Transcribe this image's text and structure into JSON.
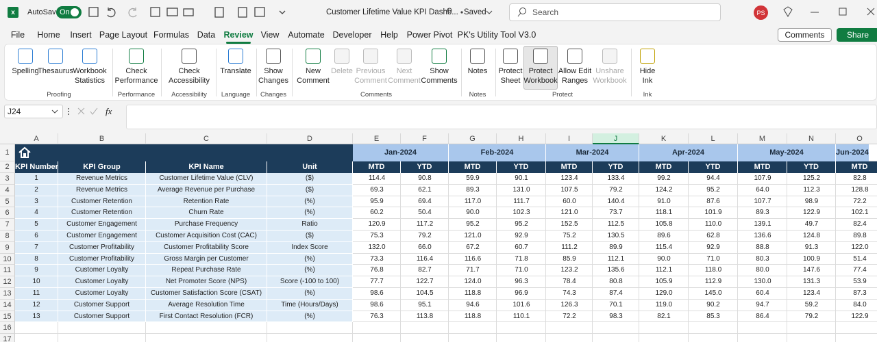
{
  "title_bar": {
    "autosave": "AutoSave",
    "toggle": "On",
    "document_title": "Customer Lifetime Value KPI Dashb...",
    "status": "Saved",
    "search": "Search",
    "avatar": "PS"
  },
  "menu": {
    "tabs": [
      "File",
      "Home",
      "Insert",
      "Page Layout",
      "Formulas",
      "Data",
      "Review",
      "View",
      "Automate",
      "Developer",
      "Help",
      "Power Pivot",
      "PK's Utility Tool V3.0"
    ],
    "comments_button": "Comments",
    "share_button": "Share"
  },
  "ribbon": {
    "groups": [
      {
        "label": "Proofing",
        "buttons": [
          {
            "lines": [
              "Spelling"
            ]
          },
          {
            "lines": [
              "Thesaurus"
            ]
          },
          {
            "lines": [
              "Workbook",
              "Statistics"
            ]
          }
        ]
      },
      {
        "label": "Performance",
        "buttons": [
          {
            "lines": [
              "Check",
              "Performance"
            ]
          }
        ]
      },
      {
        "label": "Accessibility",
        "buttons": [
          {
            "lines": [
              "Check",
              "Accessibility"
            ]
          }
        ]
      },
      {
        "label": "Language",
        "buttons": [
          {
            "lines": [
              "Translate"
            ]
          }
        ]
      },
      {
        "label": "Changes",
        "buttons": [
          {
            "lines": [
              "Show",
              "Changes"
            ]
          }
        ]
      },
      {
        "label": "Comments",
        "buttons": [
          {
            "lines": [
              "New",
              "Comment"
            ]
          },
          {
            "lines": [
              "Delete"
            ],
            "disabled": true
          },
          {
            "lines": [
              "Previous",
              "Comment"
            ],
            "disabled": true
          },
          {
            "lines": [
              "Next",
              "Comment"
            ],
            "disabled": true
          },
          {
            "lines": [
              "Show",
              "Comments"
            ]
          }
        ]
      },
      {
        "label": "Notes",
        "buttons": [
          {
            "lines": [
              "Notes"
            ]
          }
        ]
      },
      {
        "label": "Protect",
        "buttons": [
          {
            "lines": [
              "Protect",
              "Sheet"
            ]
          },
          {
            "lines": [
              "Protect",
              "Workbook"
            ]
          },
          {
            "lines": [
              "Allow Edit",
              "Ranges"
            ]
          },
          {
            "lines": [
              "Unshare",
              "Workbook"
            ],
            "disabled": true
          }
        ]
      },
      {
        "label": "Ink",
        "buttons": [
          {
            "lines": [
              "Hide",
              "Ink"
            ]
          }
        ]
      }
    ]
  },
  "formula_bar": {
    "name_box": "J24",
    "fx": "fx"
  },
  "sheet": {
    "columns": [
      "A",
      "B",
      "C",
      "D",
      "E",
      "F",
      "G",
      "H",
      "I",
      "J",
      "K",
      "L",
      "M",
      "N",
      "O"
    ],
    "row_numbers": [
      "1",
      "2",
      "3",
      "4",
      "5",
      "6",
      "7",
      "8",
      "9",
      "10",
      "11",
      "12",
      "13",
      "14",
      "15",
      "16",
      "17"
    ],
    "months": [
      "Jan-2024",
      "Feb-2024",
      "Mar-2024",
      "Apr-2024",
      "May-2024",
      "Jun-2024"
    ],
    "header": [
      "KPI Number",
      "KPI Group",
      "KPI Name",
      "Unit",
      "MTD",
      "YTD",
      "MTD",
      "YTD",
      "MTD",
      "YTD",
      "MTD",
      "YTD",
      "MTD",
      "YTD",
      "MTD"
    ],
    "rows": [
      [
        "1",
        "Revenue Metrics",
        "Customer Lifetime Value (CLV)",
        "($)",
        "114.4",
        "90.8",
        "59.9",
        "90.1",
        "123.4",
        "133.4",
        "99.2",
        "94.4",
        "107.9",
        "125.2",
        "82.8"
      ],
      [
        "2",
        "Revenue Metrics",
        "Average Revenue per Purchase",
        "($)",
        "69.3",
        "62.1",
        "89.3",
        "131.0",
        "107.5",
        "79.2",
        "124.2",
        "95.2",
        "64.0",
        "112.3",
        "128.8"
      ],
      [
        "3",
        "Customer Retention",
        "Retention Rate",
        "(%)",
        "95.9",
        "69.4",
        "117.0",
        "111.7",
        "60.0",
        "140.4",
        "91.0",
        "87.6",
        "107.7",
        "98.9",
        "72.2"
      ],
      [
        "4",
        "Customer Retention",
        "Churn Rate",
        "(%)",
        "60.2",
        "50.4",
        "90.0",
        "102.3",
        "121.0",
        "73.7",
        "118.1",
        "101.9",
        "89.3",
        "122.9",
        "102.1"
      ],
      [
        "5",
        "Customer Engagement",
        "Purchase Frequency",
        "Ratio",
        "120.9",
        "117.2",
        "95.2",
        "95.2",
        "152.5",
        "112.5",
        "105.8",
        "110.0",
        "139.1",
        "49.7",
        "82.4"
      ],
      [
        "6",
        "Customer Engagement",
        "Customer Acquisition Cost (CAC)",
        "($)",
        "75.3",
        "79.2",
        "121.0",
        "92.9",
        "75.2",
        "130.5",
        "89.6",
        "62.8",
        "136.6",
        "124.8",
        "89.8"
      ],
      [
        "7",
        "Customer Profitability",
        "Customer Profitability Score",
        "Index Score",
        "132.0",
        "66.0",
        "67.2",
        "60.7",
        "111.2",
        "89.9",
        "115.4",
        "92.9",
        "88.8",
        "91.3",
        "122.0"
      ],
      [
        "8",
        "Customer Profitability",
        "Gross Margin per Customer",
        "(%)",
        "73.3",
        "116.4",
        "116.6",
        "71.8",
        "85.9",
        "112.1",
        "90.0",
        "71.0",
        "80.3",
        "100.9",
        "51.4"
      ],
      [
        "9",
        "Customer Loyalty",
        "Repeat Purchase Rate",
        "(%)",
        "76.8",
        "82.7",
        "71.7",
        "71.0",
        "123.2",
        "135.6",
        "112.1",
        "118.0",
        "80.0",
        "147.6",
        "77.4"
      ],
      [
        "10",
        "Customer Loyalty",
        "Net Promoter Score (NPS)",
        "Score (-100 to 100)",
        "77.7",
        "122.7",
        "124.0",
        "96.3",
        "78.4",
        "80.8",
        "105.9",
        "112.9",
        "130.0",
        "131.3",
        "53.9"
      ],
      [
        "11",
        "Customer Loyalty",
        "Customer Satisfaction Score (CSAT)",
        "(%)",
        "98.6",
        "104.5",
        "118.8",
        "96.9",
        "74.3",
        "87.4",
        "129.0",
        "145.0",
        "60.4",
        "123.4",
        "87.3"
      ],
      [
        "12",
        "Customer Support",
        "Average Resolution Time",
        "Time (Hours/Days)",
        "98.6",
        "95.1",
        "94.6",
        "101.6",
        "126.3",
        "70.1",
        "119.0",
        "90.2",
        "94.7",
        "59.2",
        "84.0"
      ],
      [
        "13",
        "Customer Support",
        "First Contact Resolution (FCR)",
        "(%)",
        "76.3",
        "113.8",
        "118.8",
        "110.1",
        "72.2",
        "98.3",
        "82.1",
        "85.3",
        "86.4",
        "79.2",
        "122.9"
      ]
    ]
  }
}
